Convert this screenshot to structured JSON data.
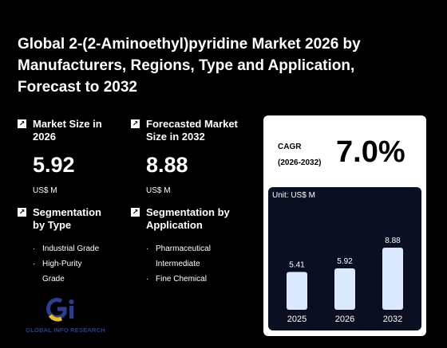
{
  "title": "Global 2-(2-Aminoethyl)pyridine Market 2026 by Manufacturers, Regions, Type and Application, Forecast to 2032",
  "market_size": {
    "label": "Market Size in 2026",
    "value": "5.92",
    "unit": "US$ M"
  },
  "forecast_size": {
    "label": "Forecasted Market Size in 2032",
    "value": "8.88",
    "unit": "US$ M"
  },
  "segmentation_type": {
    "label": "Segmentation by Type",
    "items": [
      "Industrial Grade",
      "High-Purity Grade"
    ]
  },
  "segmentation_application": {
    "label": "Segmentation by Application",
    "items": [
      "Pharmaceutical Intermediate",
      "Fine Chemical"
    ]
  },
  "cagr": {
    "label_line1": "CAGR",
    "label_line2": "(2026-2032)",
    "value": "7.0%"
  },
  "logo": {
    "text": "GLOBAL INFO RESEARCH"
  },
  "colors": {
    "background": "#000000",
    "bar_fill": "#dbe9ff",
    "panel": "#0b0f22",
    "logo_blue": "#2a3f8f",
    "logo_yellow": "#e8c21a"
  },
  "chart_data": {
    "type": "bar",
    "unit_label": "Unit: US$ M",
    "categories": [
      "2025",
      "2026",
      "2032"
    ],
    "values": [
      5.41,
      5.92,
      8.88
    ],
    "value_labels": [
      "5.41",
      "5.92",
      "8.88"
    ]
  }
}
